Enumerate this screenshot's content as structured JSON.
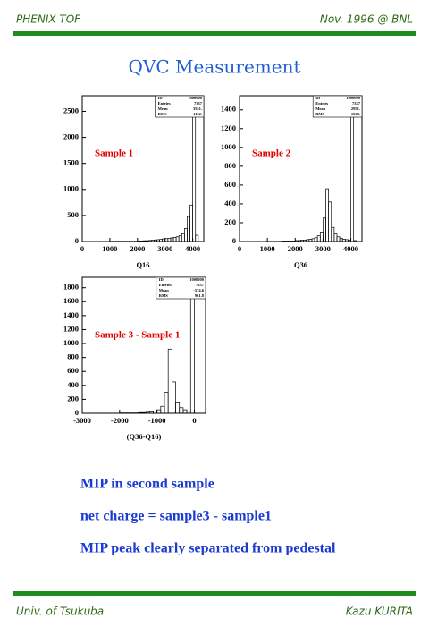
{
  "header": {
    "left": "PHENIX TOF",
    "right": "Nov. 1996 @ BNL"
  },
  "title": "QVC Measurement",
  "chart_data": [
    {
      "type": "histogram",
      "annotation": "Sample 1",
      "xlabel": "Q16",
      "color": "#000000",
      "annotation_color": "#e00000",
      "stats": [
        {
          "label": "ID",
          "value": "1000000"
        },
        {
          "label": "Entries",
          "value": "7337"
        },
        {
          "label": "Mean",
          "value": "3551."
        },
        {
          "label": "RMS",
          "value": "1102."
        }
      ],
      "bins": [
        0,
        100,
        200,
        300,
        400,
        500,
        600,
        700,
        800,
        900,
        1000,
        1100,
        1200,
        1300,
        1400,
        1500,
        1600,
        1700,
        1800,
        1900,
        2000,
        2100,
        2200,
        2300,
        2400,
        2500,
        2600,
        2700,
        2800,
        2900,
        3000,
        3100,
        3200,
        3300,
        3400,
        3500,
        3600,
        3700,
        3800,
        3900,
        4000,
        4100,
        4200,
        4300,
        4400
      ],
      "counts": [
        0,
        0,
        0,
        0,
        0,
        0,
        0,
        0,
        0,
        0,
        5,
        5,
        5,
        5,
        5,
        5,
        5,
        5,
        5,
        5,
        10,
        10,
        15,
        15,
        20,
        25,
        30,
        35,
        40,
        50,
        55,
        60,
        70,
        80,
        90,
        110,
        150,
        250,
        480,
        700,
        2600,
        120,
        0,
        0
      ],
      "xlim": [
        0,
        4400
      ],
      "ylim": [
        0,
        2800
      ],
      "xticks": [
        0,
        1000,
        2000,
        3000,
        4000
      ],
      "yticks": [
        0,
        500,
        1000,
        1500,
        2000,
        2500
      ]
    },
    {
      "type": "histogram",
      "annotation": "Sample 2",
      "xlabel": "Q36",
      "color": "#000000",
      "annotation_color": "#e00000",
      "stats": [
        {
          "label": "ID",
          "value": "1000000"
        },
        {
          "label": "Entries",
          "value": "7337"
        },
        {
          "label": "Mean",
          "value": "2951."
        },
        {
          "label": "RMS",
          "value": "1060."
        }
      ],
      "bins": [
        0,
        100,
        200,
        300,
        400,
        500,
        600,
        700,
        800,
        900,
        1000,
        1100,
        1200,
        1300,
        1400,
        1500,
        1600,
        1700,
        1800,
        1900,
        2000,
        2100,
        2200,
        2300,
        2400,
        2500,
        2600,
        2700,
        2800,
        2900,
        3000,
        3100,
        3200,
        3300,
        3400,
        3500,
        3600,
        3700,
        3800,
        3900,
        4000,
        4100,
        4200,
        4300,
        4400
      ],
      "counts": [
        0,
        0,
        0,
        0,
        0,
        0,
        0,
        0,
        0,
        0,
        2,
        2,
        2,
        2,
        2,
        5,
        5,
        5,
        5,
        5,
        10,
        10,
        15,
        15,
        20,
        25,
        30,
        40,
        60,
        100,
        250,
        560,
        420,
        150,
        80,
        50,
        35,
        25,
        20,
        15,
        1450,
        10,
        0,
        0
      ],
      "xlim": [
        0,
        4400
      ],
      "ylim": [
        0,
        1550
      ],
      "xticks": [
        0,
        1000,
        2000,
        3000,
        4000
      ],
      "yticks": [
        0,
        200,
        400,
        600,
        800,
        1000,
        1200,
        1400
      ]
    },
    {
      "type": "histogram",
      "annotation": "Sample 3 - Sample 1",
      "xlabel": "(Q36-Q16)",
      "color": "#000000",
      "annotation_color": "#e00000",
      "stats": [
        {
          "label": "ID",
          "value": "1000000"
        },
        {
          "label": "Entries",
          "value": "7337"
        },
        {
          "label": "Mean",
          "value": "-574.6"
        },
        {
          "label": "RMS",
          "value": "961.8"
        }
      ],
      "bins": [
        -3000,
        -2900,
        -2800,
        -2700,
        -2600,
        -2500,
        -2400,
        -2300,
        -2200,
        -2100,
        -2000,
        -1900,
        -1800,
        -1700,
        -1600,
        -1500,
        -1400,
        -1300,
        -1200,
        -1100,
        -1000,
        -900,
        -800,
        -700,
        -600,
        -500,
        -400,
        -300,
        -200,
        -100,
        0,
        100,
        200
      ],
      "counts": [
        0,
        0,
        0,
        0,
        0,
        2,
        2,
        2,
        2,
        2,
        5,
        5,
        5,
        5,
        5,
        10,
        10,
        15,
        20,
        30,
        50,
        100,
        300,
        920,
        450,
        150,
        80,
        50,
        30,
        1850,
        0,
        0
      ],
      "xlim": [
        -3000,
        300
      ],
      "ylim": [
        0,
        1950
      ],
      "xticks": [
        -3000,
        -2000,
        -1000,
        0
      ],
      "yticks": [
        0,
        200,
        400,
        600,
        800,
        1000,
        1200,
        1400,
        1600,
        1800
      ]
    }
  ],
  "bullets": [
    "MIP in second sample",
    "net charge = sample3  -  sample1",
    "MIP peak clearly separated from pedestal"
  ],
  "footer": {
    "left": "Univ. of Tsukuba",
    "right": "Kazu KURITA"
  }
}
